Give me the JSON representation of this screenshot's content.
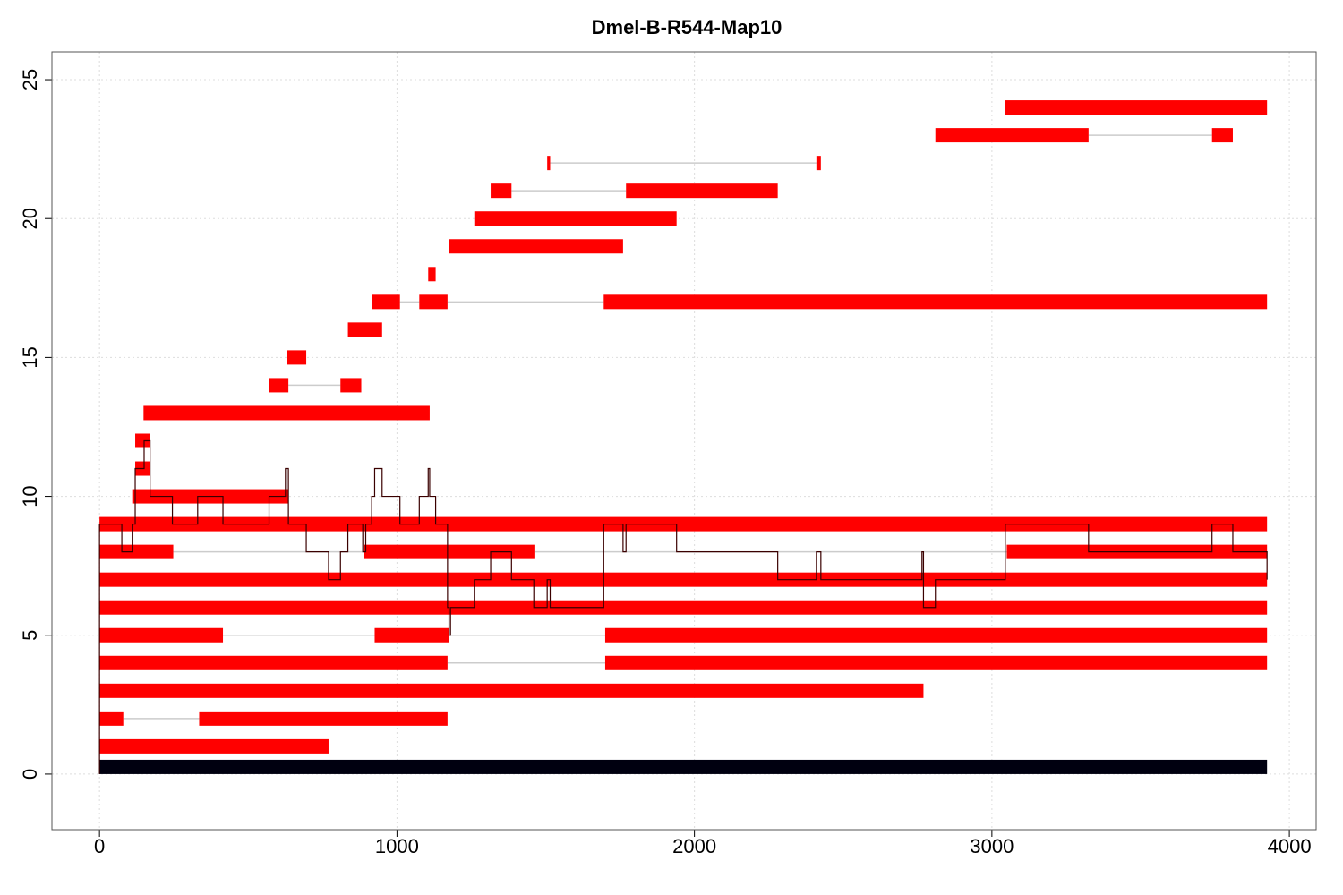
{
  "chart_data": {
    "type": "bar",
    "title": "Dmel-B-R544-Map10",
    "xlabel": "",
    "ylabel": "",
    "xlim": [
      -160,
      4090
    ],
    "ylim": [
      -2,
      26
    ],
    "x_ticks": [
      0,
      1000,
      2000,
      3000,
      4000
    ],
    "y_ticks": [
      0,
      5,
      10,
      15,
      20,
      25
    ],
    "x_tick_labels": [
      "0",
      "1000",
      "2000",
      "3000",
      "4000"
    ],
    "y_tick_labels": [
      "0",
      "5",
      "10",
      "15",
      "20",
      "25"
    ],
    "grid": true,
    "colors": {
      "read": "#ff0000",
      "reference": "#000010",
      "coverage": "#3a0000",
      "connector": "#cccccc",
      "grid": "#dddddd",
      "frame": "#555555"
    },
    "reference": {
      "row": 0,
      "start": 0,
      "end": 3925
    },
    "rows": [
      {
        "row": 1,
        "segments": [
          [
            0,
            770
          ]
        ]
      },
      {
        "row": 2,
        "segments": [
          [
            0,
            80
          ],
          [
            335,
            1170
          ]
        ]
      },
      {
        "row": 3,
        "segments": [
          [
            0,
            2770
          ]
        ]
      },
      {
        "row": 4,
        "segments": [
          [
            0,
            1170
          ],
          [
            1700,
            3925
          ]
        ]
      },
      {
        "row": 5,
        "segments": [
          [
            0,
            415
          ],
          [
            925,
            1175
          ],
          [
            1700,
            3925
          ]
        ]
      },
      {
        "row": 6,
        "segments": [
          [
            0,
            3925
          ]
        ]
      },
      {
        "row": 7,
        "segments": [
          [
            0,
            3925
          ]
        ]
      },
      {
        "row": 8,
        "segments": [
          [
            0,
            248
          ],
          [
            890,
            1462
          ],
          [
            3050,
            3925
          ]
        ]
      },
      {
        "row": 9,
        "segments": [
          [
            0,
            3925
          ]
        ]
      },
      {
        "row": 10,
        "segments": [
          [
            110,
            635
          ]
        ]
      },
      {
        "row": 11,
        "segments": [
          [
            120,
            170
          ]
        ]
      },
      {
        "row": 12,
        "segments": [
          [
            120,
            170
          ]
        ]
      },
      {
        "row": 13,
        "segments": [
          [
            148,
            1110
          ]
        ]
      },
      {
        "row": 14,
        "segments": [
          [
            570,
            635
          ],
          [
            810,
            880
          ]
        ]
      },
      {
        "row": 15,
        "segments": [
          [
            630,
            695
          ]
        ]
      },
      {
        "row": 16,
        "segments": [
          [
            835,
            950
          ]
        ]
      },
      {
        "row": 17,
        "segments": [
          [
            915,
            1010
          ],
          [
            1075,
            1170
          ],
          [
            1695,
            3925
          ]
        ]
      },
      {
        "row": 18,
        "segments": [
          [
            1105,
            1130
          ]
        ]
      },
      {
        "row": 19,
        "segments": [
          [
            1175,
            1760
          ]
        ]
      },
      {
        "row": 20,
        "segments": [
          [
            1260,
            1940
          ]
        ]
      },
      {
        "row": 21,
        "segments": [
          [
            1315,
            1385
          ],
          [
            1770,
            2280
          ]
        ]
      },
      {
        "row": 22,
        "segments": [
          [
            1505,
            1515
          ],
          [
            2410,
            2425
          ]
        ]
      },
      {
        "row": 23,
        "segments": [
          [
            2810,
            3325
          ],
          [
            3740,
            3810
          ]
        ]
      },
      {
        "row": 24,
        "segments": [
          [
            3045,
            3925
          ]
        ]
      }
    ],
    "coverage": [
      [
        0,
        9
      ],
      [
        75,
        8
      ],
      [
        110,
        9
      ],
      [
        120,
        11
      ],
      [
        150,
        12
      ],
      [
        170,
        10
      ],
      [
        245,
        9
      ],
      [
        330,
        10
      ],
      [
        415,
        9
      ],
      [
        570,
        10
      ],
      [
        625,
        11
      ],
      [
        635,
        9
      ],
      [
        695,
        8
      ],
      [
        770,
        7
      ],
      [
        810,
        8
      ],
      [
        835,
        9
      ],
      [
        885,
        8
      ],
      [
        895,
        9
      ],
      [
        915,
        10
      ],
      [
        925,
        11
      ],
      [
        950,
        10
      ],
      [
        1010,
        9
      ],
      [
        1075,
        10
      ],
      [
        1105,
        11
      ],
      [
        1110,
        10
      ],
      [
        1130,
        9
      ],
      [
        1170,
        6
      ],
      [
        1175,
        5
      ],
      [
        1180,
        6
      ],
      [
        1260,
        7
      ],
      [
        1315,
        8
      ],
      [
        1385,
        7
      ],
      [
        1460,
        6
      ],
      [
        1505,
        7
      ],
      [
        1515,
        6
      ],
      [
        1695,
        9
      ],
      [
        1760,
        8
      ],
      [
        1770,
        9
      ],
      [
        1940,
        8
      ],
      [
        2280,
        7
      ],
      [
        2410,
        8
      ],
      [
        2425,
        7
      ],
      [
        2765,
        8
      ],
      [
        2770,
        6
      ],
      [
        2810,
        7
      ],
      [
        3045,
        9
      ],
      [
        3325,
        8
      ],
      [
        3740,
        9
      ],
      [
        3810,
        8
      ],
      [
        3925,
        7
      ]
    ]
  }
}
